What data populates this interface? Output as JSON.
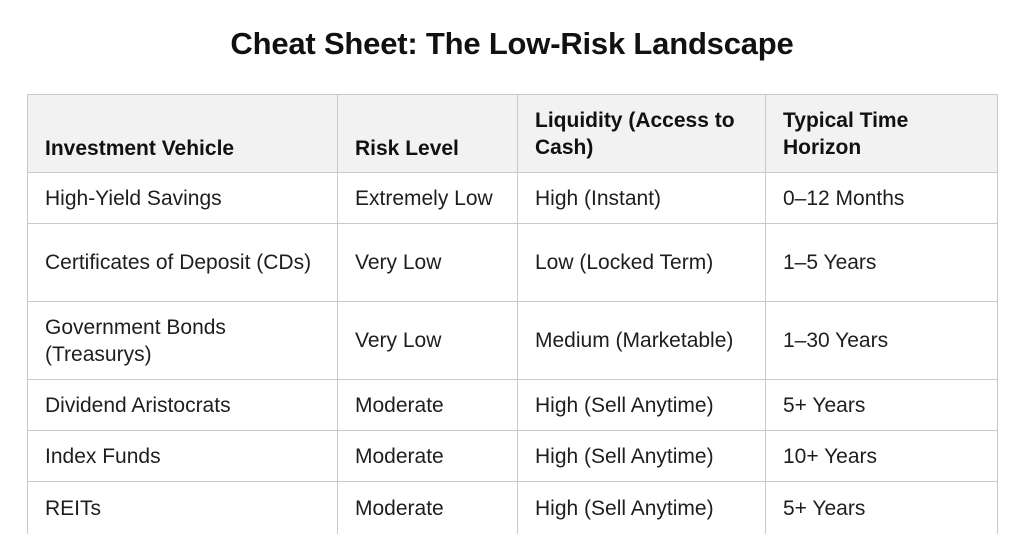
{
  "title": "Cheat Sheet: The Low-Risk Landscape",
  "table": {
    "headers": [
      "Investment Vehicle",
      "Risk Level",
      "Liquidity (Access to Cash)",
      "Typical Time Horizon"
    ],
    "rows": [
      [
        "High-Yield Savings",
        "Extremely Low",
        "High (Instant)",
        "0–12 Months"
      ],
      [
        "Certificates of Deposit (CDs)",
        "Very Low",
        "Low (Locked Term)",
        "1–5 Years"
      ],
      [
        "Government Bonds (Treasurys)",
        "Very Low",
        "Medium (Marketable)",
        "1–30 Years"
      ],
      [
        "Dividend Aristocrats",
        "Moderate",
        "High (Sell Anytime)",
        "5+ Years"
      ],
      [
        "Index Funds",
        "Moderate",
        "High (Sell Anytime)",
        "10+ Years"
      ],
      [
        "REITs",
        "Moderate",
        "High (Sell Anytime)",
        "5+ Years"
      ]
    ]
  }
}
